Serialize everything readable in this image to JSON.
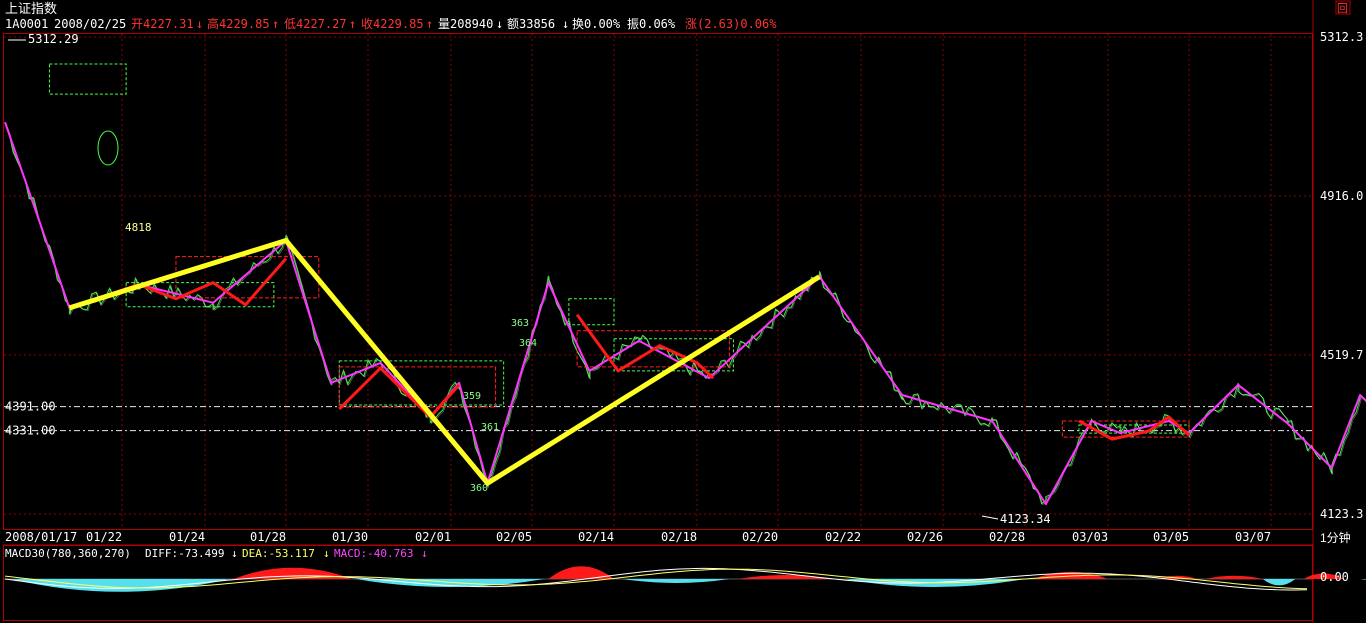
{
  "header": {
    "title": "上证指数",
    "code": "1A0001",
    "date": "2008/02/25",
    "open_label": "开4227.31",
    "high_label": "高4229.85",
    "low_label": "低4227.27",
    "close_label": "收4229.85",
    "volume_label": "量208940",
    "amount_label": "额33856",
    "turnover_label": "换0.00%",
    "amplitude_label": "振0.06%",
    "change_label": "涨(2.63)0.06%"
  },
  "window": {
    "close_glyph": "回"
  },
  "period_button": "1分钟",
  "chart_data": {
    "type": "line",
    "y_axis": {
      "ticks": [
        "5312.3",
        "4916.0",
        "4519.7",
        "4123.3"
      ],
      "ylim": [
        4123.3,
        5312.3
      ]
    },
    "x_axis": {
      "ticks": [
        "2008/01/17",
        "01/22",
        "01/24",
        "01/28",
        "01/30",
        "02/01",
        "02/05",
        "02/14",
        "02/18",
        "02/20",
        "02/22",
        "02/26",
        "02/28",
        "03/03",
        "03/05",
        "03/07"
      ]
    },
    "reference_lines": [
      {
        "label": "4391.00",
        "value": 4391.0
      },
      {
        "label": "4331.00",
        "value": 4331.0
      }
    ],
    "annotations": [
      {
        "text": "5312.29",
        "value": 5312.29
      },
      {
        "text": "4818",
        "value": 4818
      },
      {
        "text": "4123.34",
        "value": 4123.34
      },
      {
        "text": "359"
      },
      {
        "text": "361"
      },
      {
        "text": "360"
      },
      {
        "text": "363"
      },
      {
        "text": "364"
      }
    ],
    "zigzag_yellow": [
      {
        "x": 0.55,
        "y": 4637
      },
      {
        "x": 3.0,
        "y": 4805
      },
      {
        "x": 5.45,
        "y": 4200
      },
      {
        "x": 9.5,
        "y": 4715
      }
    ],
    "zigzag_magenta": [
      {
        "x": 0.0,
        "y": 5100
      },
      {
        "x": 0.55,
        "y": 4637
      },
      {
        "x": 1.2,
        "y": 4695
      },
      {
        "x": 2.1,
        "y": 4650
      },
      {
        "x": 3.0,
        "y": 4805
      },
      {
        "x": 3.55,
        "y": 4450
      },
      {
        "x": 4.15,
        "y": 4500
      },
      {
        "x": 4.75,
        "y": 4365
      },
      {
        "x": 5.1,
        "y": 4450
      },
      {
        "x": 5.45,
        "y": 4200
      },
      {
        "x": 6.2,
        "y": 4700
      },
      {
        "x": 6.7,
        "y": 4480
      },
      {
        "x": 7.3,
        "y": 4555
      },
      {
        "x": 8.15,
        "y": 4462
      },
      {
        "x": 9.5,
        "y": 4715
      },
      {
        "x": 10.5,
        "y": 4420
      },
      {
        "x": 11.6,
        "y": 4355
      },
      {
        "x": 12.25,
        "y": 4148
      },
      {
        "x": 12.8,
        "y": 4355
      },
      {
        "x": 13.15,
        "y": 4325
      },
      {
        "x": 13.75,
        "y": 4355
      },
      {
        "x": 14.0,
        "y": 4325
      },
      {
        "x": 14.6,
        "y": 4445
      },
      {
        "x": 15.2,
        "y": 4350
      },
      {
        "x": 15.75,
        "y": 4238
      },
      {
        "x": 16.1,
        "y": 4420
      },
      {
        "x": 16.7,
        "y": 4300
      }
    ],
    "zigzag_red": [
      [
        {
          "x": 0.55,
          "y": 4637
        },
        {
          "x": 1.2,
          "y": 4695
        },
        {
          "x": 1.65,
          "y": 4660
        },
        {
          "x": 2.1,
          "y": 4700
        },
        {
          "x": 2.5,
          "y": 4645
        },
        {
          "x": 3.0,
          "y": 4760
        }
      ],
      [
        {
          "x": 3.65,
          "y": 4385
        },
        {
          "x": 4.15,
          "y": 4487
        },
        {
          "x": 4.75,
          "y": 4365
        },
        {
          "x": 5.1,
          "y": 4445
        }
      ],
      [
        {
          "x": 6.55,
          "y": 4620
        },
        {
          "x": 7.05,
          "y": 4480
        },
        {
          "x": 7.55,
          "y": 4543
        },
        {
          "x": 8.0,
          "y": 4500
        },
        {
          "x": 8.2,
          "y": 4462
        }
      ],
      [
        {
          "x": 12.65,
          "y": 4355
        },
        {
          "x": 13.05,
          "y": 4310
        },
        {
          "x": 13.5,
          "y": 4330
        },
        {
          "x": 13.75,
          "y": 4365
        },
        {
          "x": 14.0,
          "y": 4320
        }
      ]
    ],
    "boxes_green_dashed": [
      {
        "x0": 0.38,
        "x1": 1.05,
        "y0": 5170,
        "y1": 5245
      },
      {
        "x0": 1.05,
        "x1": 2.85,
        "y0": 4640,
        "y1": 4700
      },
      {
        "x0": 3.65,
        "x1": 5.65,
        "y0": 4395,
        "y1": 4505
      },
      {
        "x0": 6.45,
        "x1": 7.0,
        "y0": 4595,
        "y1": 4660
      },
      {
        "x0": 7.0,
        "x1": 8.45,
        "y0": 4480,
        "y1": 4560
      },
      {
        "x0": 12.65,
        "x1": 14.0,
        "y0": 4325,
        "y1": 4345
      }
    ],
    "boxes_red_dashed": [
      {
        "x0": 1.65,
        "x1": 3.4,
        "y0": 4662,
        "y1": 4765
      },
      {
        "x0": 3.65,
        "x1": 5.55,
        "y0": 4390,
        "y1": 4490
      },
      {
        "x0": 6.55,
        "x1": 8.4,
        "y0": 4490,
        "y1": 4580
      },
      {
        "x0": 12.45,
        "x1": 14.0,
        "y0": 4315,
        "y1": 4355
      }
    ],
    "macd_panel": {
      "label": "MACD30(780,360,270)",
      "diff_label": "DIFF:-73.499",
      "dea_label": "DEA:-53.117",
      "macd_label": "MACD:-40.763",
      "y_tick": "0.00",
      "histogram_red": [
        {
          "x0": 2.35,
          "x1": 3.8,
          "h": 14
        },
        {
          "x0": 6.2,
          "x1": 7.0,
          "h": 16
        },
        {
          "x0": 8.5,
          "x1": 9.7,
          "h": 5
        },
        {
          "x0": 12.1,
          "x1": 13.0,
          "h": 9
        },
        {
          "x0": 13.6,
          "x1": 14.1,
          "h": 4
        },
        {
          "x0": 14.2,
          "x1": 14.9,
          "h": 4
        },
        {
          "x0": 15.4,
          "x1": 15.9,
          "h": 7
        }
      ],
      "histogram_cyan": [
        {
          "x0": 0.05,
          "x1": 2.3,
          "h": -16
        },
        {
          "x0": 3.85,
          "x1": 6.15,
          "h": -10
        },
        {
          "x0": 7.1,
          "x1": 8.4,
          "h": -5
        },
        {
          "x0": 9.8,
          "x1": 12.0,
          "h": -10
        },
        {
          "x0": 14.9,
          "x1": 15.3,
          "h": -8
        },
        {
          "x0": 16.1,
          "x1": 16.9,
          "h": -3
        }
      ]
    }
  }
}
